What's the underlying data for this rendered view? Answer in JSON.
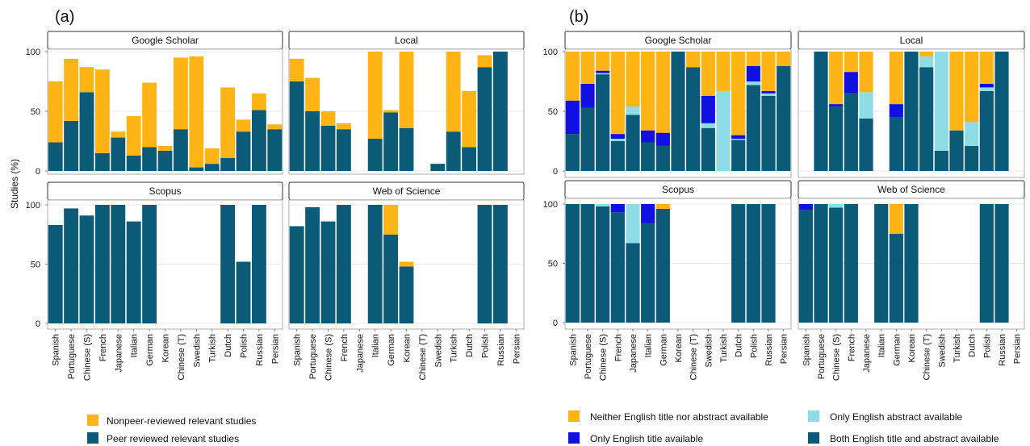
{
  "colors": {
    "peer": "#0B5A78",
    "nonpeer": "#FFB415",
    "neither": "#FFB415",
    "title_only": "#1010E0",
    "abstract_only": "#8EDCE6",
    "both": "#0B5A78",
    "grid": "#E0E0E0",
    "strip_border": "#333333"
  },
  "figure": {
    "label_a": "(a)",
    "label_b": "(b)",
    "ylabel": "Studies (%)",
    "yticks": [
      "0",
      "50",
      "100"
    ]
  },
  "legend_a": [
    {
      "label": "Nonpeer-reviewed  relevant studies",
      "color": "#FFB415"
    },
    {
      "label": "Peer reviewed relevant  studies",
      "color": "#0B5A78"
    }
  ],
  "legend_b": [
    {
      "label": "Neither English title nor abstract available",
      "color": "#FFB415"
    },
    {
      "label": "Only English abstract available",
      "color": "#8EDCE6"
    },
    {
      "label": "Only English title available",
      "color": "#1010E0"
    },
    {
      "label": "Both English title and abstract available",
      "color": "#0B5A78"
    }
  ],
  "chart_data": [
    {
      "type": "bar",
      "panel": "(a)",
      "ylabel": "Studies (%)",
      "ylim": [
        0,
        100
      ],
      "categories": [
        "Spanish",
        "Portuguese",
        "Chinese (S)",
        "French",
        "Japanese",
        "Italian",
        "German",
        "Korean",
        "Chinese (T)",
        "Swedish",
        "Turkish",
        "Dutch",
        "Polish",
        "Russian",
        "Persian"
      ],
      "facets": [
        {
          "title": "Google Scholar",
          "series": [
            {
              "name": "Peer reviewed relevant  studies",
              "values": [
                24,
                42,
                66,
                15,
                28,
                13,
                20,
                17,
                35,
                3,
                6,
                11,
                33,
                51,
                35
              ]
            },
            {
              "name": "Nonpeer-reviewed  relevant studies",
              "values": [
                51,
                52,
                21,
                70,
                5,
                33,
                54,
                4,
                60,
                93,
                13,
                59,
                10,
                14,
                4
              ]
            }
          ]
        },
        {
          "title": "Local",
          "series": [
            {
              "name": "Peer reviewed relevant  studies",
              "values": [
                75,
                50,
                38,
                35,
                null,
                27,
                49,
                36,
                null,
                6,
                33,
                20,
                87,
                100,
                null
              ]
            },
            {
              "name": "Nonpeer-reviewed  relevant studies",
              "values": [
                19,
                28,
                12,
                5,
                null,
                73,
                2,
                64,
                null,
                0,
                67,
                47,
                10,
                0,
                null
              ]
            }
          ]
        },
        {
          "title": "Scopus",
          "series": [
            {
              "name": "Peer reviewed relevant  studies",
              "values": [
                83,
                97,
                91,
                100,
                100,
                86,
                100,
                null,
                null,
                null,
                null,
                100,
                52,
                100,
                null
              ]
            },
            {
              "name": "Nonpeer-reviewed  relevant studies",
              "values": [
                0,
                0,
                0,
                0,
                0,
                0,
                0,
                null,
                null,
                null,
                null,
                0,
                0,
                0,
                null
              ]
            }
          ]
        },
        {
          "title": "Web of Science",
          "series": [
            {
              "name": "Peer reviewed relevant  studies",
              "values": [
                82,
                98,
                86,
                100,
                null,
                100,
                75,
                48,
                null,
                null,
                null,
                null,
                100,
                100,
                null
              ]
            },
            {
              "name": "Nonpeer-reviewed  relevant studies",
              "values": [
                0,
                0,
                0,
                0,
                null,
                0,
                25,
                4,
                null,
                null,
                null,
                null,
                0,
                0,
                null
              ]
            }
          ]
        }
      ]
    },
    {
      "type": "bar",
      "panel": "(b)",
      "ylim": [
        0,
        100
      ],
      "categories": [
        "Spanish",
        "Portuguese",
        "Chinese (S)",
        "French",
        "Japanese",
        "Italian",
        "German",
        "Korean",
        "Chinese (T)",
        "Swedish",
        "Turkish",
        "Dutch",
        "Polish",
        "Russian",
        "Persian"
      ],
      "facets": [
        {
          "title": "Google Scholar",
          "series": [
            {
              "name": "Both English title and abstract available",
              "values": [
                31,
                53,
                81,
                25,
                47,
                24,
                21,
                100,
                87,
                36,
                0,
                26,
                72,
                63,
                88
              ]
            },
            {
              "name": "Only English abstract available",
              "values": [
                0,
                0,
                1,
                2,
                7,
                0,
                0,
                0,
                0,
                4,
                67,
                1,
                3,
                2,
                0
              ]
            },
            {
              "name": "Only English title available",
              "values": [
                28,
                20,
                2,
                4,
                0,
                10,
                11,
                0,
                0,
                23,
                0,
                3,
                13,
                2,
                0
              ]
            },
            {
              "name": "Neither English title nor abstract available",
              "values": [
                41,
                27,
                16,
                69,
                46,
                66,
                68,
                0,
                13,
                37,
                33,
                70,
                12,
                33,
                12
              ]
            }
          ]
        },
        {
          "title": "Local",
          "series": [
            {
              "name": "Both English title and abstract available",
              "values": [
                null,
                100,
                54,
                65,
                44,
                null,
                45,
                100,
                87,
                17,
                34,
                21,
                67,
                100,
                null
              ]
            },
            {
              "name": "Only English abstract available",
              "values": [
                null,
                0,
                0,
                0,
                22,
                null,
                0,
                0,
                9,
                83,
                0,
                20,
                3,
                0,
                null
              ]
            },
            {
              "name": "Only English title available",
              "values": [
                null,
                0,
                2,
                18,
                0,
                null,
                11,
                0,
                0,
                0,
                0,
                0,
                3,
                0,
                null
              ]
            },
            {
              "name": "Neither English title nor abstract available",
              "values": [
                null,
                0,
                44,
                17,
                34,
                null,
                44,
                0,
                4,
                0,
                66,
                59,
                27,
                0,
                null
              ]
            }
          ]
        },
        {
          "title": "Scopus",
          "series": [
            {
              "name": "Both English title and abstract available",
              "values": [
                100,
                100,
                98,
                93,
                67,
                84,
                96,
                null,
                null,
                null,
                null,
                100,
                100,
                100,
                null
              ]
            },
            {
              "name": "Only English abstract available",
              "values": [
                0,
                0,
                2,
                0,
                33,
                0,
                0,
                null,
                null,
                null,
                null,
                0,
                0,
                0,
                null
              ]
            },
            {
              "name": "Only English title available",
              "values": [
                0,
                0,
                0,
                7,
                0,
                16,
                0,
                null,
                null,
                null,
                null,
                0,
                0,
                0,
                null
              ]
            },
            {
              "name": "Neither English title nor abstract available",
              "values": [
                0,
                0,
                0,
                0,
                0,
                0,
                4,
                null,
                null,
                null,
                null,
                0,
                0,
                0,
                null
              ]
            }
          ]
        },
        {
          "title": "Web of Science",
          "series": [
            {
              "name": "Both English title and abstract available",
              "values": [
                95,
                100,
                97,
                100,
                null,
                100,
                75,
                100,
                null,
                null,
                null,
                null,
                100,
                100,
                null
              ]
            },
            {
              "name": "Only English abstract available",
              "values": [
                0,
                0,
                3,
                0,
                null,
                0,
                0,
                0,
                null,
                null,
                null,
                null,
                0,
                0,
                null
              ]
            },
            {
              "name": "Only English title available",
              "values": [
                5,
                0,
                0,
                0,
                null,
                0,
                0,
                0,
                null,
                null,
                null,
                null,
                0,
                0,
                null
              ]
            },
            {
              "name": "Neither English title nor abstract available",
              "values": [
                0,
                0,
                0,
                0,
                null,
                0,
                25,
                0,
                null,
                null,
                null,
                null,
                0,
                0,
                null
              ]
            }
          ]
        }
      ]
    }
  ]
}
